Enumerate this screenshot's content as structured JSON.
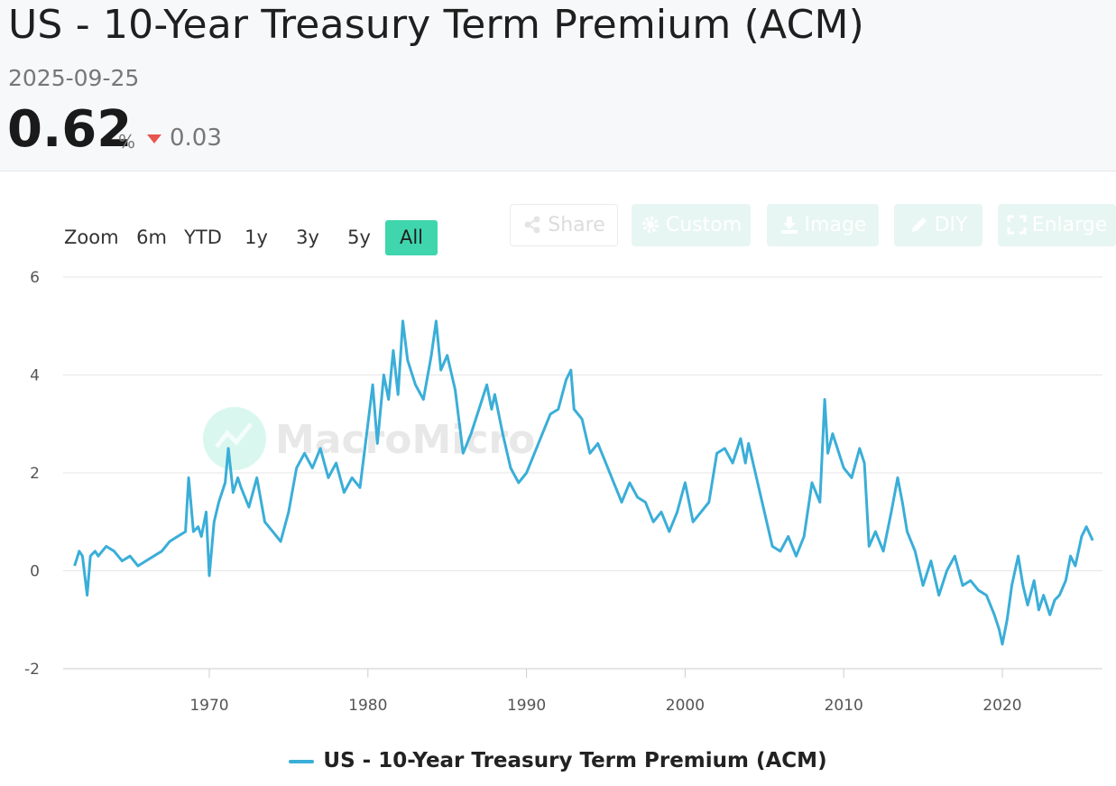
{
  "header": {
    "title": "US - 10-Year Treasury Term Premium (ACM)",
    "date": "2025-09-25",
    "value": "0.62",
    "unit": "%",
    "change": "0.03",
    "change_direction": "down",
    "change_color": "#e8554e"
  },
  "zoom": {
    "label": "Zoom",
    "options": [
      "6m",
      "YTD",
      "1y",
      "3y",
      "5y",
      "All"
    ],
    "active": "All",
    "active_color": "#3fd5ad"
  },
  "toolbar": {
    "share": "Share",
    "custom": "Custom",
    "image": "Image",
    "diy": "DIY",
    "enlarge": "Enlarge"
  },
  "watermark": "MacroMicro",
  "chart_data": {
    "type": "line",
    "title": "",
    "xlabel": "",
    "ylabel": "",
    "x_ticks": [
      "1970",
      "1980",
      "1990",
      "2000",
      "2010",
      "2020"
    ],
    "y_ticks": [
      "-2",
      "0",
      "2",
      "4",
      "6"
    ],
    "ylim": [
      -2,
      6
    ],
    "xlim": [
      1961.0,
      2026.0
    ],
    "grid": true,
    "legend_position": "bottom",
    "series": [
      {
        "name": "US - 10-Year Treasury Term Premium (ACM)",
        "color": "#3aaed8",
        "x": [
          1961.5,
          1961.8,
          1962.0,
          1962.3,
          1962.5,
          1962.8,
          1963.0,
          1963.5,
          1964.0,
          1964.5,
          1965.0,
          1965.5,
          1966.0,
          1966.5,
          1967.0,
          1967.5,
          1968.0,
          1968.5,
          1968.7,
          1969.0,
          1969.3,
          1969.5,
          1969.8,
          1970.0,
          1970.3,
          1970.6,
          1971.0,
          1971.2,
          1971.5,
          1971.8,
          1972.0,
          1972.5,
          1973.0,
          1973.5,
          1974.0,
          1974.5,
          1975.0,
          1975.5,
          1976.0,
          1976.5,
          1977.0,
          1977.5,
          1978.0,
          1978.5,
          1979.0,
          1979.5,
          1980.0,
          1980.3,
          1980.6,
          1981.0,
          1981.3,
          1981.6,
          1981.9,
          1982.2,
          1982.5,
          1983.0,
          1983.5,
          1984.0,
          1984.3,
          1984.6,
          1985.0,
          1985.5,
          1986.0,
          1986.5,
          1987.0,
          1987.5,
          1987.8,
          1988.0,
          1988.5,
          1989.0,
          1989.5,
          1990.0,
          1990.5,
          1991.0,
          1991.5,
          1992.0,
          1992.5,
          1992.8,
          1993.0,
          1993.5,
          1994.0,
          1994.5,
          1995.0,
          1995.5,
          1996.0,
          1996.5,
          1997.0,
          1997.5,
          1998.0,
          1998.5,
          1999.0,
          1999.5,
          2000.0,
          2000.5,
          2001.0,
          2001.5,
          2002.0,
          2002.5,
          2003.0,
          2003.5,
          2003.8,
          2004.0,
          2004.5,
          2005.0,
          2005.5,
          2006.0,
          2006.5,
          2007.0,
          2007.5,
          2008.0,
          2008.5,
          2008.8,
          2009.0,
          2009.3,
          2009.6,
          2010.0,
          2010.5,
          2011.0,
          2011.3,
          2011.6,
          2012.0,
          2012.5,
          2013.0,
          2013.4,
          2013.7,
          2014.0,
          2014.5,
          2015.0,
          2015.5,
          2016.0,
          2016.5,
          2017.0,
          2017.5,
          2018.0,
          2018.5,
          2019.0,
          2019.5,
          2019.8,
          2020.0,
          2020.3,
          2020.6,
          2021.0,
          2021.3,
          2021.6,
          2022.0,
          2022.3,
          2022.6,
          2023.0,
          2023.3,
          2023.6,
          2024.0,
          2024.3,
          2024.6,
          2025.0,
          2025.3,
          2025.7
        ],
        "y": [
          0.1,
          0.4,
          0.3,
          -0.5,
          0.3,
          0.4,
          0.3,
          0.5,
          0.4,
          0.2,
          0.3,
          0.1,
          0.2,
          0.3,
          0.4,
          0.6,
          0.7,
          0.8,
          1.9,
          0.8,
          0.9,
          0.7,
          1.2,
          -0.1,
          1.0,
          1.4,
          1.8,
          2.5,
          1.6,
          1.9,
          1.7,
          1.3,
          1.9,
          1.0,
          0.8,
          0.6,
          1.2,
          2.1,
          2.4,
          2.1,
          2.5,
          1.9,
          2.2,
          1.6,
          1.9,
          1.7,
          3.0,
          3.8,
          2.6,
          4.0,
          3.5,
          4.5,
          3.6,
          5.1,
          4.3,
          3.8,
          3.5,
          4.4,
          5.1,
          4.1,
          4.4,
          3.7,
          2.4,
          2.8,
          3.3,
          3.8,
          3.3,
          3.6,
          2.8,
          2.1,
          1.8,
          2.0,
          2.4,
          2.8,
          3.2,
          3.3,
          3.9,
          4.1,
          3.3,
          3.1,
          2.4,
          2.6,
          2.2,
          1.8,
          1.4,
          1.8,
          1.5,
          1.4,
          1.0,
          1.2,
          0.8,
          1.2,
          1.8,
          1.0,
          1.2,
          1.4,
          2.4,
          2.5,
          2.2,
          2.7,
          2.2,
          2.6,
          1.9,
          1.2,
          0.5,
          0.4,
          0.7,
          0.3,
          0.7,
          1.8,
          1.4,
          3.5,
          2.4,
          2.8,
          2.5,
          2.1,
          1.9,
          2.5,
          2.2,
          0.5,
          0.8,
          0.4,
          1.2,
          1.9,
          1.4,
          0.8,
          0.4,
          -0.3,
          0.2,
          -0.5,
          0.0,
          0.3,
          -0.3,
          -0.2,
          -0.4,
          -0.5,
          -0.9,
          -1.2,
          -1.5,
          -1.0,
          -0.3,
          0.3,
          -0.3,
          -0.7,
          -0.2,
          -0.8,
          -0.5,
          -0.9,
          -0.6,
          -0.5,
          -0.2,
          0.3,
          0.1,
          0.7,
          0.9,
          0.62
        ]
      }
    ]
  }
}
